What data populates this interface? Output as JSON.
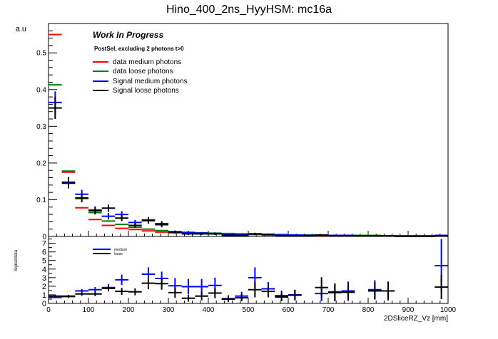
{
  "chart_data": {
    "type": "step-histogram-with-errorbars",
    "title": "Hino_400_2ns_HyyHSM: mc16a",
    "ylabel": "a.u",
    "xlabel": "2DSliceRZ_Vz [mm]",
    "xlim": [
      0,
      1000
    ],
    "ylim": [
      0,
      0.58
    ],
    "yticks": [
      0,
      0.1,
      0.2,
      0.3,
      0.4,
      0.5
    ],
    "ytick_labels": [
      "0",
      "0.1",
      "0.2",
      "0.3",
      "0.4",
      "0.5"
    ],
    "xticks": [
      0,
      100,
      200,
      300,
      400,
      500,
      600,
      700,
      800,
      900,
      1000
    ],
    "xtick_labels": [
      "0",
      "100",
      "200",
      "300",
      "400",
      "500",
      "600",
      "700",
      "800",
      "900",
      "1000"
    ],
    "annotation_title": "Work In Progress",
    "annotation_subtitle": "PostSel, excluding 2 photons t>0",
    "legend": [
      {
        "label": "data medium photons",
        "color": "#ff0000"
      },
      {
        "label": "data loose photons",
        "color": "#007f00"
      },
      {
        "label": "Signal medium photons",
        "color": "#0000ff"
      },
      {
        "label": "Signal loose photons",
        "color": "#000000"
      }
    ],
    "bin_width": 33.33,
    "bin_centers": [
      16.7,
      50,
      83.3,
      116.7,
      150,
      183.3,
      216.7,
      250,
      283.3,
      316.7,
      350,
      383.3,
      416.7,
      450,
      483.3,
      516.7,
      550,
      583.3,
      616.7,
      650,
      683.3,
      716.7,
      750,
      783.3,
      816.7,
      850,
      883.3,
      916.7,
      950,
      983.3
    ],
    "series": [
      {
        "name": "data medium photons",
        "color": "#ff0000",
        "style": "step",
        "values": [
          0.55,
          0.175,
          0.078,
          0.046,
          0.03,
          0.022,
          0.019,
          0.015,
          0.012,
          0.01,
          0.009,
          0.008,
          0.007,
          0.006,
          0.005,
          0.005,
          0.004,
          0.004,
          0.003,
          0.003,
          0.003,
          0.003,
          0.002,
          0.002,
          0.002,
          0.002,
          0.002,
          0.001,
          0.001,
          0.001
        ]
      },
      {
        "name": "data loose photons",
        "color": "#007f00",
        "style": "step",
        "values": [
          0.413,
          0.178,
          0.103,
          0.065,
          0.042,
          0.033,
          0.025,
          0.02,
          0.016,
          0.013,
          0.011,
          0.01,
          0.009,
          0.008,
          0.007,
          0.006,
          0.005,
          0.005,
          0.004,
          0.004,
          0.004,
          0.003,
          0.003,
          0.003,
          0.003,
          0.002,
          0.002,
          0.002,
          0.002,
          0.002
        ]
      },
      {
        "name": "Signal medium photons",
        "color": "#0000ff",
        "style": "errorbar",
        "values": [
          0.365,
          0.148,
          0.115,
          0.072,
          0.055,
          0.06,
          0.038,
          0.045,
          0.035,
          0.012,
          0.011,
          0.009,
          0.008,
          0.005,
          0.005,
          0.007,
          0.006,
          0.004,
          0.004,
          0.003,
          0.004,
          0.003,
          0.003,
          0.002,
          0.002,
          0.002,
          0.001,
          0.001,
          0.001,
          0.003
        ],
        "errors": [
          0.03,
          0.014,
          0.012,
          0.01,
          0.009,
          0.009,
          0.007,
          0.008,
          0.007,
          0.004,
          0.004,
          0.003,
          0.003,
          0.002,
          0.002,
          0.003,
          0.002,
          0.002,
          0.002,
          0.002,
          0.002,
          0.002,
          0.002,
          0.001,
          0.001,
          0.001,
          0.001,
          0.001,
          0.001,
          0.002
        ]
      },
      {
        "name": "Signal loose photons",
        "color": "#000000",
        "style": "errorbar",
        "values": [
          0.35,
          0.145,
          0.105,
          0.07,
          0.077,
          0.05,
          0.03,
          0.043,
          0.032,
          0.012,
          0.007,
          0.007,
          0.007,
          0.003,
          0.003,
          0.007,
          0.005,
          0.002,
          0.002,
          0.002,
          0.004,
          0.002,
          0.002,
          0.001,
          0.001,
          0.001,
          0.0,
          0.0,
          0.0,
          0.002
        ],
        "errors": [
          0.03,
          0.014,
          0.012,
          0.01,
          0.01,
          0.008,
          0.006,
          0.008,
          0.007,
          0.004,
          0.003,
          0.003,
          0.003,
          0.002,
          0.002,
          0.003,
          0.002,
          0.002,
          0.002,
          0.002,
          0.002,
          0.002,
          0.002,
          0.001,
          0.001,
          0.001,
          0.0,
          0.0,
          0.0,
          0.002
        ]
      }
    ],
    "ratio_panel": {
      "ylabel": "Signal/data",
      "ylim": [
        0,
        7.8
      ],
      "yticks": [
        0,
        1,
        2,
        3,
        4,
        5,
        6,
        7
      ],
      "ytick_labels": [
        "0",
        "1",
        "2",
        "3",
        "4",
        "5",
        "6",
        "7"
      ],
      "legend": [
        {
          "label": "medium",
          "color": "#0000ff"
        },
        {
          "label": "loose",
          "color": "#000000"
        }
      ],
      "series": [
        {
          "name": "medium",
          "color": "#0000ff",
          "points": [
            {
              "x": 16.7,
              "y": 0.7,
              "e": 0.1
            },
            {
              "x": 50,
              "y": 0.85,
              "e": 0.15
            },
            {
              "x": 83.3,
              "y": 1.45,
              "e": 0.2
            },
            {
              "x": 116.7,
              "y": 1.6,
              "e": 0.3
            },
            {
              "x": 150,
              "y": 1.85,
              "e": 0.4
            },
            {
              "x": 183.3,
              "y": 2.75,
              "e": 0.6
            },
            {
              "x": 250,
              "y": 3.4,
              "e": 0.8
            },
            {
              "x": 283.3,
              "y": 2.9,
              "e": 0.8
            },
            {
              "x": 316.7,
              "y": 2.05,
              "e": 0.9
            },
            {
              "x": 350,
              "y": 1.95,
              "e": 0.9
            },
            {
              "x": 383.3,
              "y": 1.95,
              "e": 0.9
            },
            {
              "x": 416.7,
              "y": 2.1,
              "e": 0.9
            },
            {
              "x": 450,
              "y": 0.55,
              "e": 0.4
            },
            {
              "x": 483.3,
              "y": 0.85,
              "e": 0.5
            },
            {
              "x": 516.7,
              "y": 3.0,
              "e": 1.2
            },
            {
              "x": 550,
              "y": 1.7,
              "e": 0.8
            },
            {
              "x": 583.3,
              "y": 0.9,
              "e": 0.6
            },
            {
              "x": 616.7,
              "y": 1.0,
              "e": 0.6
            },
            {
              "x": 683.3,
              "y": 1.15,
              "e": 0.9
            },
            {
              "x": 716.7,
              "y": 1.35,
              "e": 1.0
            },
            {
              "x": 750,
              "y": 1.45,
              "e": 1.1
            },
            {
              "x": 816.7,
              "y": 1.6,
              "e": 1.1
            },
            {
              "x": 983.3,
              "y": 4.4,
              "e": 3.1
            }
          ]
        },
        {
          "name": "loose",
          "color": "#000000",
          "points": [
            {
              "x": 16.7,
              "y": 0.85,
              "e": 0.1
            },
            {
              "x": 50,
              "y": 0.8,
              "e": 0.15
            },
            {
              "x": 83.3,
              "y": 1.1,
              "e": 0.2
            },
            {
              "x": 116.7,
              "y": 1.1,
              "e": 0.25
            },
            {
              "x": 150,
              "y": 1.75,
              "e": 0.35
            },
            {
              "x": 183.3,
              "y": 1.4,
              "e": 0.4
            },
            {
              "x": 216.7,
              "y": 1.35,
              "e": 0.4
            },
            {
              "x": 250,
              "y": 2.35,
              "e": 0.7
            },
            {
              "x": 283.3,
              "y": 2.3,
              "e": 0.7
            },
            {
              "x": 316.7,
              "y": 1.25,
              "e": 0.6
            },
            {
              "x": 350,
              "y": 0.6,
              "e": 0.4
            },
            {
              "x": 383.3,
              "y": 0.85,
              "e": 0.5
            },
            {
              "x": 416.7,
              "y": 1.2,
              "e": 0.6
            },
            {
              "x": 450,
              "y": 0.5,
              "e": 0.3
            },
            {
              "x": 483.3,
              "y": 0.65,
              "e": 0.4
            },
            {
              "x": 516.7,
              "y": 1.6,
              "e": 0.9
            },
            {
              "x": 550,
              "y": 1.4,
              "e": 0.7
            },
            {
              "x": 583.3,
              "y": 0.75,
              "e": 0.5
            },
            {
              "x": 616.7,
              "y": 0.95,
              "e": 0.6
            },
            {
              "x": 683.3,
              "y": 1.85,
              "e": 1.2
            },
            {
              "x": 716.7,
              "y": 1.25,
              "e": 1.0
            },
            {
              "x": 750,
              "y": 1.3,
              "e": 1.0
            },
            {
              "x": 816.7,
              "y": 1.45,
              "e": 1.0
            },
            {
              "x": 850,
              "y": 1.45,
              "e": 1.1
            },
            {
              "x": 983.3,
              "y": 1.9,
              "e": 1.4
            }
          ]
        }
      ]
    }
  }
}
